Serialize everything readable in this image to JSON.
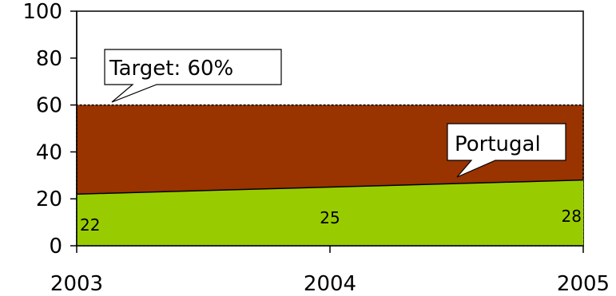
{
  "chart_data": {
    "type": "area",
    "x": [
      "2003",
      "2004",
      "2005"
    ],
    "ylim": [
      0,
      100
    ],
    "yticks": [
      "0",
      "20",
      "40",
      "60",
      "80",
      "100"
    ],
    "grid": false,
    "series": [
      {
        "key": "target",
        "values": [
          60,
          60,
          60
        ],
        "color": "#993300"
      },
      {
        "key": "portugal",
        "values": [
          22,
          25,
          28
        ],
        "color": "#99CC00"
      }
    ],
    "data_labels": [
      "22",
      "25",
      "28"
    ],
    "annotations": {
      "target": "Target: 60%",
      "portugal": "Portugal"
    }
  }
}
